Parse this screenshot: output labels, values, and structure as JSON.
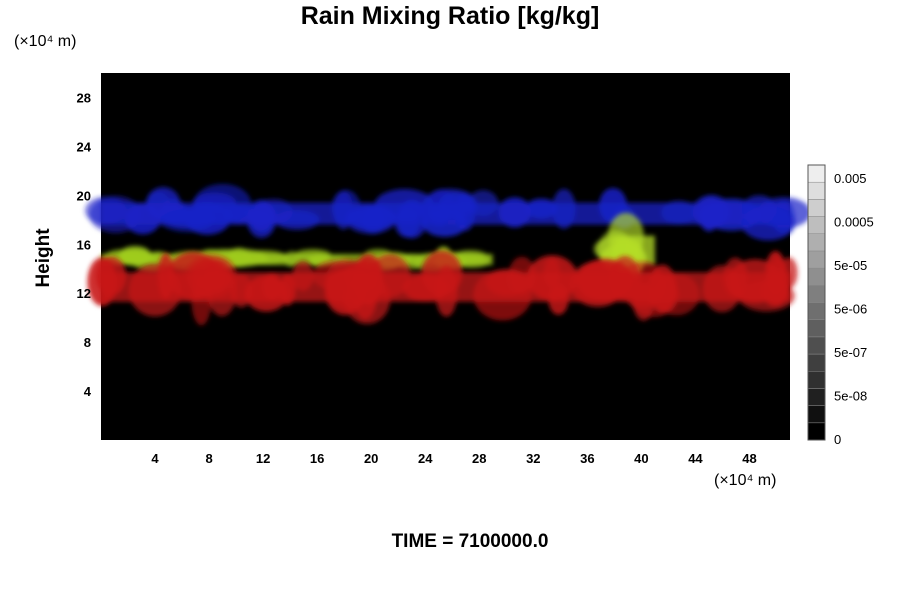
{
  "chart_data": {
    "type": "heatmap",
    "title": "Rain Mixing Ratio [kg/kg]",
    "xlabel": "",
    "ylabel": "Height",
    "x_unit": "(×10⁴ m)",
    "y_unit": "(×10⁴ m)",
    "xlim": [
      0,
      51
    ],
    "ylim": [
      0,
      30
    ],
    "x_ticks": [
      4,
      8,
      12,
      16,
      20,
      24,
      28,
      32,
      36,
      40,
      44,
      48
    ],
    "y_ticks": [
      4,
      8,
      12,
      16,
      20,
      24,
      28
    ],
    "colorbar": {
      "levels": 16,
      "labels": [
        "0",
        "5e-08",
        "5e-07",
        "5e-06",
        "5e-05",
        "0.0005",
        "0.005"
      ]
    },
    "regions": [
      {
        "color": "#1a22c8",
        "x": [
          0,
          51
        ],
        "y": [
          17,
          20
        ]
      },
      {
        "color": "#9fcc1e",
        "x": [
          0,
          29
        ],
        "y": [
          14,
          15.5
        ]
      },
      {
        "color": "#b4dd28",
        "x": [
          38,
          41
        ],
        "y": [
          13.5,
          17.5
        ]
      },
      {
        "color": "#c81818",
        "x": [
          0,
          51
        ],
        "y": [
          10.5,
          14.5
        ]
      }
    ]
  },
  "footer": {
    "time_label": "TIME = 7100000.0"
  }
}
